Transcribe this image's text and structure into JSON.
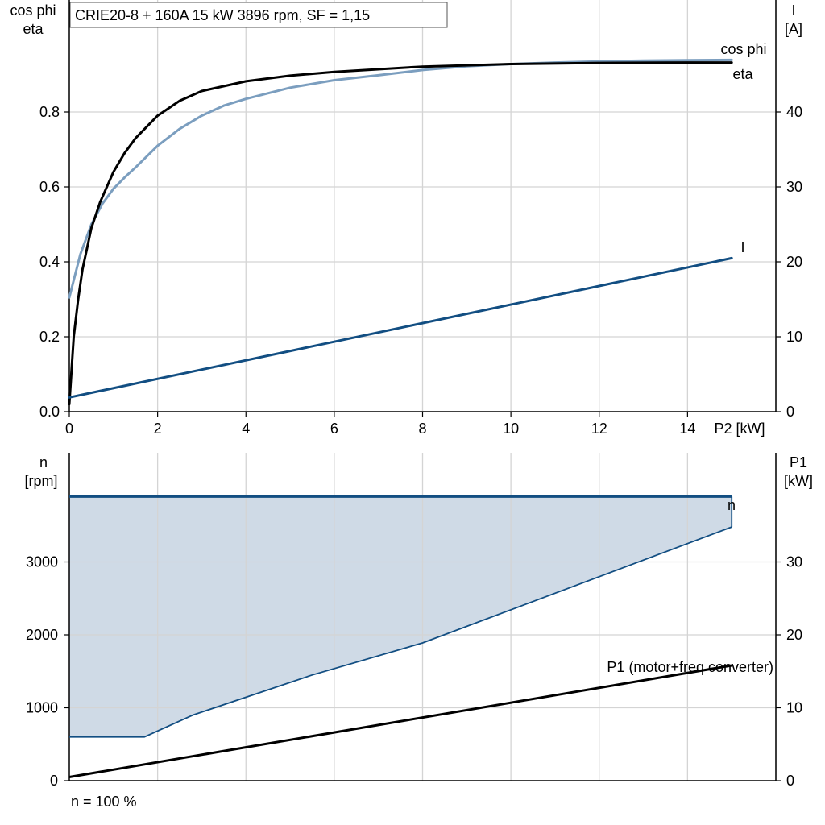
{
  "colors": {
    "cosphi": "#7b9ebf",
    "eta": "#000000",
    "current": "#124e82",
    "speed": "#124e82",
    "speed_fill": "#cfdae6",
    "p1": "#000000",
    "grid": "#d4d4d4"
  },
  "chart_data": [
    {
      "type": "line",
      "title": "CRIE20-8 + 160A   15 kW   3896 rpm, SF = 1,15",
      "xlabel": "P2 [kW]",
      "xlim": [
        0,
        16
      ],
      "x_ticks": [
        0,
        2,
        4,
        6,
        8,
        10,
        12,
        14
      ],
      "ylabel_left": [
        "cos phi",
        "eta"
      ],
      "ylim_left": [
        0,
        1.0
      ],
      "y_ticks_left": [
        0.0,
        0.2,
        0.4,
        0.6,
        0.8
      ],
      "y_ticks_left_labels": [
        "0.0",
        "0.2",
        "0.4",
        "0.6",
        "0.8"
      ],
      "ylabel_right": [
        "I",
        "[A]"
      ],
      "ylim_right": [
        0,
        50
      ],
      "y_ticks_right": [
        0,
        10,
        20,
        30,
        40
      ],
      "grid": true,
      "series": [
        {
          "name": "cos phi",
          "axis": "left",
          "x": [
            0,
            0.25,
            0.5,
            0.75,
            1,
            1.25,
            1.5,
            2,
            2.5,
            3,
            3.5,
            4,
            5,
            6,
            7,
            8,
            9,
            10,
            11,
            12,
            13,
            14,
            15
          ],
          "y": [
            0.305,
            0.42,
            0.5,
            0.555,
            0.595,
            0.625,
            0.652,
            0.71,
            0.755,
            0.79,
            0.817,
            0.835,
            0.865,
            0.885,
            0.898,
            0.912,
            0.922,
            0.928,
            0.932,
            0.935,
            0.937,
            0.938,
            0.939
          ]
        },
        {
          "name": "eta",
          "axis": "left",
          "x": [
            0,
            0.1,
            0.2,
            0.3,
            0.5,
            0.7,
            1,
            1.25,
            1.5,
            2,
            2.5,
            3,
            4,
            5,
            6,
            8,
            10,
            12,
            14,
            15
          ],
          "y": [
            0.02,
            0.2,
            0.3,
            0.38,
            0.49,
            0.56,
            0.64,
            0.69,
            0.73,
            0.79,
            0.83,
            0.856,
            0.882,
            0.897,
            0.907,
            0.921,
            0.928,
            0.931,
            0.932,
            0.932
          ]
        },
        {
          "name": "I",
          "axis": "right",
          "x": [
            0,
            15
          ],
          "y": [
            1.9,
            20.5
          ]
        }
      ]
    },
    {
      "type": "area",
      "xlim": [
        0,
        16
      ],
      "ylabel_left": [
        "n",
        "[rpm]"
      ],
      "ylim_left": [
        0,
        4000
      ],
      "y_ticks_left": [
        0,
        1000,
        2000,
        3000
      ],
      "ylabel_right": [
        "P1",
        "[kW]"
      ],
      "ylim_right": [
        0,
        40
      ],
      "y_ticks_right": [
        0,
        10,
        20,
        30
      ],
      "grid": true,
      "footer": "n = 100 %",
      "series": [
        {
          "name": "n",
          "axis": "left",
          "upper": {
            "x": [
              0,
              15
            ],
            "y": [
              3896,
              3896
            ]
          },
          "lower": {
            "x": [
              0,
              1.7,
              2.8,
              5.5,
              8,
              15
            ],
            "y": [
              600,
              600,
              900,
              1450,
              1890,
              3480
            ]
          }
        },
        {
          "name": "P1 (motor+freq converter)",
          "axis": "right",
          "x": [
            0,
            15
          ],
          "y": [
            0.5,
            15.8
          ]
        }
      ]
    }
  ]
}
